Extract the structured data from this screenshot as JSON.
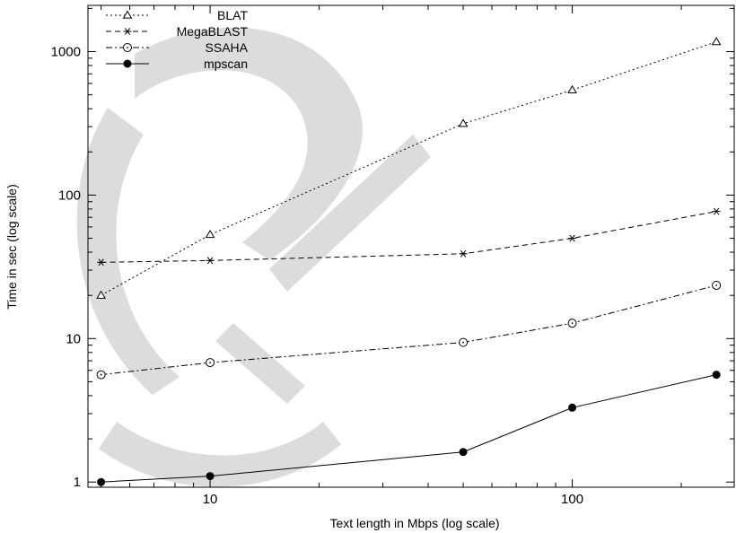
{
  "chart_data": {
    "type": "line",
    "title": "",
    "xlabel": "Text length in Mbps (log scale)",
    "ylabel": "Time in sec (log scale)",
    "xscale": "log",
    "yscale": "log",
    "xlim": [
      4.6,
      280
    ],
    "ylim": [
      0.92,
      2100
    ],
    "xticks": [
      10,
      100
    ],
    "xtick_labels": [
      "10",
      "100"
    ],
    "yticks": [
      1,
      10,
      100,
      1000
    ],
    "ytick_labels": [
      "1",
      "10",
      "100",
      "1000"
    ],
    "grid": false,
    "legend_position": "top-left",
    "x": [
      5,
      10,
      50,
      100,
      250
    ],
    "series": [
      {
        "name": "BLAT",
        "values": [
          20,
          53,
          315,
          540,
          1170
        ],
        "marker": "triangle",
        "dash": "dotted"
      },
      {
        "name": "MegaBLAST",
        "values": [
          34,
          35,
          39,
          50,
          77
        ],
        "marker": "star",
        "dash": "dashed"
      },
      {
        "name": "SSAHA",
        "values": [
          5.6,
          6.8,
          9.4,
          12.8,
          23.5
        ],
        "marker": "open-circle",
        "dash": "dash-dot"
      },
      {
        "name": "mpscan",
        "values": [
          1.0,
          1.1,
          1.62,
          3.3,
          5.6
        ],
        "marker": "filled-circle",
        "dash": "solid"
      }
    ]
  },
  "watermark": "CC"
}
